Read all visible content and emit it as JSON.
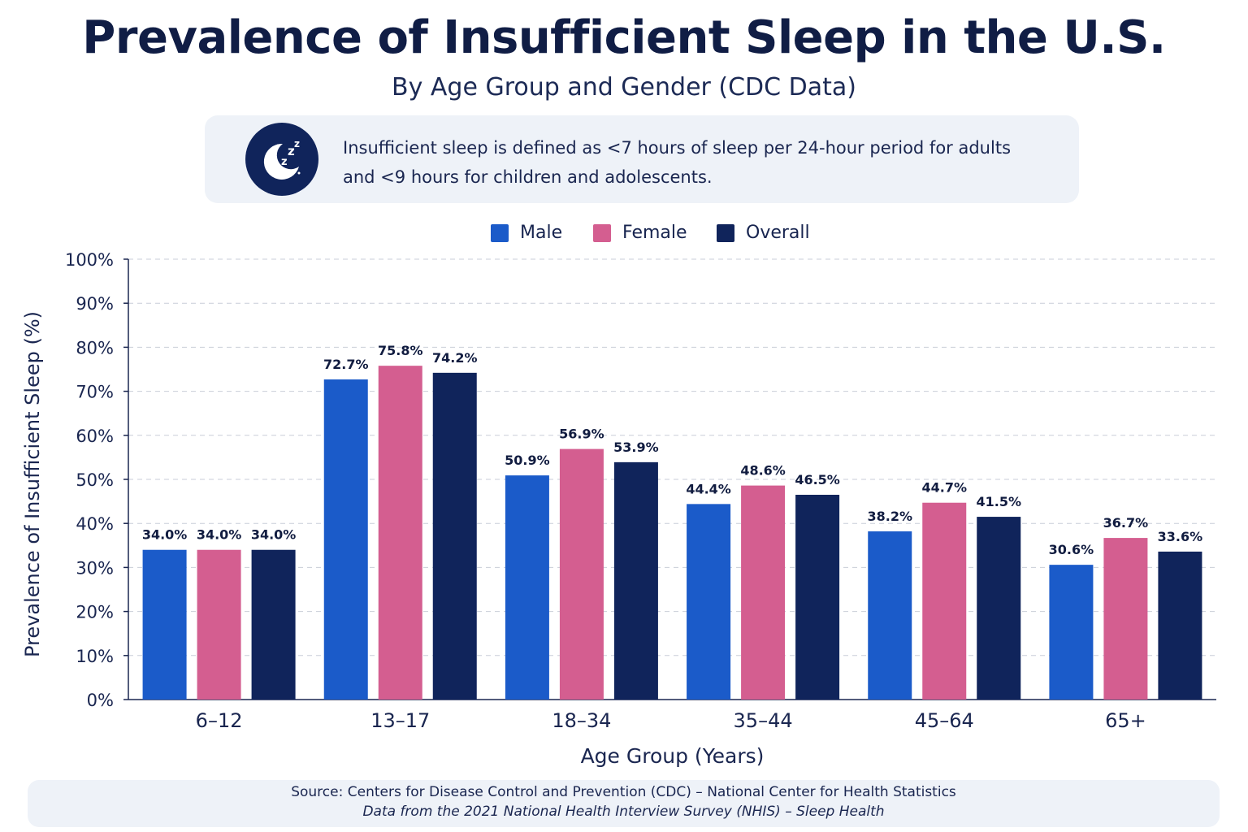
{
  "colors": {
    "male": "#1b5bc9",
    "female": "#d45e90",
    "overall": "#10245b",
    "axis": "#1a2650",
    "grid": "#c9ced8",
    "panel": "#eef2f8"
  },
  "header": {
    "title": "Prevalence of Insufficient Sleep in the U.S.",
    "subtitle": "By Age Group and Gender (CDC Data)"
  },
  "info": {
    "icon": "moon-sleep-icon",
    "line1": "Insufficient sleep is defined as <7 hours of sleep per 24-hour period for adults",
    "line2": "and <9 hours for children and adolescents."
  },
  "chart_data": {
    "type": "bar",
    "title": "Prevalence of Insufficient Sleep in the U.S.",
    "subtitle": "By Age Group and Gender (CDC Data)",
    "xlabel": "Age Group (Years)",
    "ylabel": "Prevalence of Insufficient Sleep (%)",
    "ylim": [
      0,
      100
    ],
    "yticks": [
      "0%",
      "10%",
      "20%",
      "30%",
      "40%",
      "50%",
      "60%",
      "70%",
      "80%",
      "90%",
      "100%"
    ],
    "grid": true,
    "legend_position": "top-center",
    "categories": [
      "6–12",
      "13–17",
      "18–34",
      "35–44",
      "45–64",
      "65+"
    ],
    "series": [
      {
        "name": "Male",
        "values": [
          34.0,
          72.7,
          50.9,
          44.4,
          38.2,
          30.6
        ],
        "labels": [
          "34.0%",
          "72.7%",
          "50.9%",
          "44.4%",
          "38.2%",
          "30.6%"
        ]
      },
      {
        "name": "Female",
        "values": [
          34.0,
          75.8,
          56.9,
          48.6,
          44.7,
          36.7
        ],
        "labels": [
          "34.0%",
          "75.8%",
          "56.9%",
          "48.6%",
          "44.7%",
          "36.7%"
        ]
      },
      {
        "name": "Overall",
        "values": [
          34.0,
          74.2,
          53.9,
          46.5,
          41.5,
          33.6
        ],
        "labels": [
          "34.0%",
          "74.2%",
          "53.9%",
          "46.5%",
          "41.5%",
          "33.6%"
        ]
      }
    ]
  },
  "source": {
    "line1": "Source: Centers for Disease Control and Prevention (CDC) – National Center for Health Statistics",
    "line2": "Data from the 2021 National Health Interview Survey (NHIS) – Sleep Health"
  }
}
